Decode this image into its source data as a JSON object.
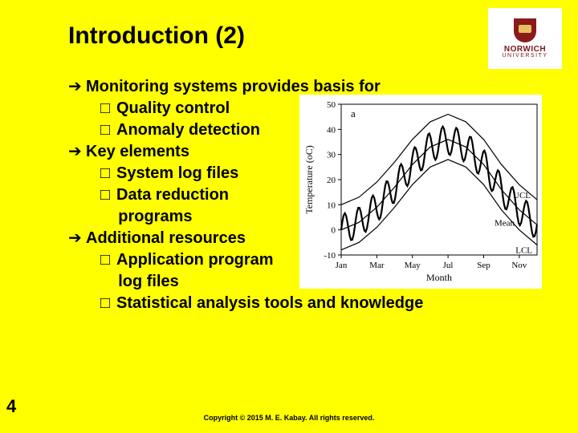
{
  "title": "Introduction (2)",
  "logo": {
    "name": "NORWICH",
    "sub": "UNIVERSITY"
  },
  "bullets": [
    {
      "level": 1,
      "kind": "arrow",
      "text": "Monitoring systems provides basis for"
    },
    {
      "level": 2,
      "kind": "box",
      "text": "Quality control"
    },
    {
      "level": 2,
      "kind": "box",
      "text": "Anomaly detection"
    },
    {
      "level": 1,
      "kind": "arrow",
      "text": "Key elements"
    },
    {
      "level": 2,
      "kind": "box",
      "text": "System log files"
    },
    {
      "level": 2,
      "kind": "box",
      "text": "Data reduction"
    },
    {
      "level": 2,
      "kind": "cont",
      "text": "programs"
    },
    {
      "level": 1,
      "kind": "arrow",
      "text": "Additional resources"
    },
    {
      "level": 2,
      "kind": "box",
      "text": "Application program"
    },
    {
      "level": 2,
      "kind": "cont",
      "text": "log files"
    },
    {
      "level": 2,
      "kind": "box",
      "text": "Statistical analysis tools and knowledge"
    }
  ],
  "pagenum": "4",
  "copyright": "Copyright © 2015 M. E. Kabay.  All rights reserved.",
  "chart": {
    "type": "line",
    "plot_label": "a",
    "annotations": {
      "ucl": "UCL",
      "mean": "Mean",
      "lcl": "LCL"
    },
    "ylabel": "Temperature (oC)",
    "xlabel": "Month",
    "x_categories": [
      "Jan",
      "Mar",
      "May",
      "Jul",
      "Sep",
      "Nov"
    ],
    "ylim": [
      -10,
      50
    ],
    "ytick_step": 10,
    "grid": false,
    "line_color": "#000000",
    "line_width_heavy": 2.2,
    "line_width_light": 1.2,
    "background_color": "#ffffff",
    "font_size": 11,
    "series_months": [
      1,
      2,
      3,
      4,
      5,
      6,
      7,
      8,
      9,
      10,
      11,
      12
    ],
    "mean_values": [
      0,
      3,
      9,
      17,
      26,
      33,
      36,
      33,
      26,
      16,
      8,
      2
    ],
    "ucl_values": [
      10,
      13,
      19,
      27,
      36,
      43,
      46,
      43,
      36,
      26,
      18,
      12
    ],
    "lcl_values": [
      -8,
      -5,
      1,
      9,
      18,
      25,
      28,
      25,
      18,
      8,
      0,
      -6
    ],
    "osc_amplitude": 6,
    "osc_cycles": 14
  }
}
